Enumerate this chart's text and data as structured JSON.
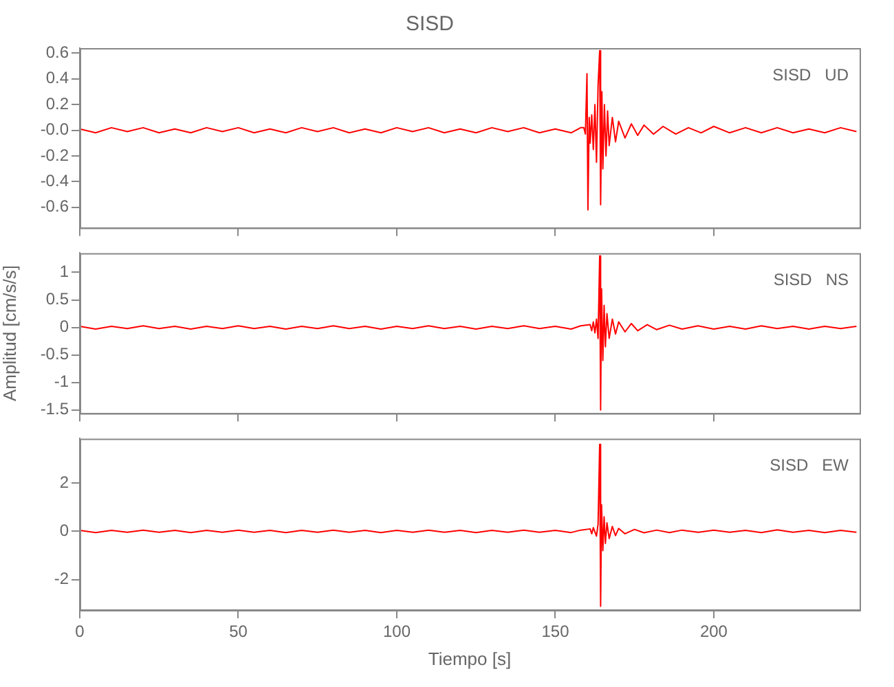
{
  "chart_data": [
    {
      "type": "line",
      "title": "SISD",
      "annotations": [
        "SISD   UD"
      ],
      "color": "#ff0000",
      "marker": "none",
      "grid": false,
      "legend": false,
      "tick_labels": "y",
      "xlim": [
        0,
        246
      ],
      "xticks": [
        0,
        50,
        100,
        150,
        200
      ],
      "ylim": [
        -0.76,
        0.64
      ],
      "yticks": [
        -0.6,
        -0.4,
        -0.2,
        {
          "value": 0,
          "label": "-0.0"
        },
        0.2,
        0.4,
        0.6
      ],
      "x": [
        0,
        5,
        10,
        15,
        20,
        25,
        30,
        35,
        40,
        45,
        50,
        55,
        60,
        65,
        70,
        75,
        80,
        85,
        90,
        95,
        100,
        105,
        110,
        115,
        120,
        125,
        130,
        135,
        140,
        145,
        150,
        155,
        158,
        159,
        159.5,
        160,
        160.3,
        160.7,
        161,
        161.5,
        162,
        162.5,
        163,
        163.5,
        164,
        164.3,
        164.7,
        165,
        165.5,
        166,
        166.5,
        167,
        168,
        169,
        170,
        172,
        174,
        176,
        178,
        181,
        184,
        188,
        192,
        196,
        200,
        205,
        210,
        215,
        220,
        225,
        230,
        235,
        240,
        245
      ],
      "values": [
        0.01,
        -0.02,
        0.02,
        -0.01,
        0.02,
        -0.02,
        0.01,
        -0.02,
        0.02,
        -0.01,
        0.02,
        -0.02,
        0.01,
        -0.02,
        0.02,
        -0.01,
        0.02,
        -0.02,
        0.01,
        -0.02,
        0.02,
        -0.01,
        0.02,
        -0.02,
        0.01,
        -0.02,
        0.02,
        -0.01,
        0.02,
        -0.02,
        0.01,
        -0.02,
        0.02,
        0.02,
        -0.03,
        0.44,
        -0.62,
        0.1,
        -0.1,
        0.12,
        -0.15,
        0.2,
        -0.25,
        0.35,
        0.62,
        -0.58,
        0.3,
        -0.3,
        0.2,
        -0.2,
        0.15,
        -0.12,
        0.1,
        -0.09,
        0.07,
        -0.06,
        0.05,
        -0.04,
        0.04,
        -0.03,
        0.03,
        -0.03,
        0.02,
        -0.02,
        0.03,
        -0.02,
        0.02,
        -0.02,
        0.02,
        -0.02,
        0.01,
        -0.02,
        0.02,
        -0.01
      ]
    },
    {
      "type": "line",
      "ylabel": "Amplitud [cm/s/s]",
      "annotations": [
        "SISD   NS"
      ],
      "color": "#ff0000",
      "marker": "none",
      "grid": false,
      "legend": false,
      "tick_labels": "y",
      "xlim": [
        0,
        246
      ],
      "xticks": [
        0,
        50,
        100,
        150,
        200
      ],
      "ylim": [
        -1.56,
        1.35
      ],
      "yticks": [
        -1.5,
        -1,
        -0.5,
        0,
        0.5,
        1
      ],
      "x": [
        0,
        5,
        10,
        15,
        20,
        25,
        30,
        35,
        40,
        45,
        50,
        55,
        60,
        65,
        70,
        75,
        80,
        85,
        90,
        95,
        100,
        105,
        110,
        115,
        120,
        125,
        130,
        135,
        140,
        145,
        150,
        155,
        158,
        161,
        161.5,
        162,
        162.5,
        163,
        163.5,
        164,
        164.3,
        164.6,
        165,
        165.4,
        165.8,
        166.3,
        167,
        168,
        169,
        170,
        172,
        174,
        176,
        179,
        182,
        186,
        190,
        195,
        200,
        205,
        210,
        215,
        220,
        225,
        230,
        235,
        240,
        245
      ],
      "values": [
        0.02,
        -0.03,
        0.02,
        -0.02,
        0.03,
        -0.02,
        0.02,
        -0.03,
        0.02,
        -0.02,
        0.03,
        -0.02,
        0.02,
        -0.03,
        0.02,
        -0.02,
        0.03,
        -0.02,
        0.02,
        -0.03,
        0.02,
        -0.02,
        0.03,
        -0.02,
        0.02,
        -0.03,
        0.02,
        -0.02,
        0.03,
        -0.02,
        0.02,
        -0.03,
        0.03,
        0.05,
        -0.06,
        0.1,
        -0.1,
        0.15,
        -0.2,
        1.3,
        -1.5,
        0.7,
        -0.6,
        0.4,
        -0.35,
        0.25,
        -0.2,
        0.15,
        -0.12,
        0.1,
        -0.08,
        0.07,
        -0.06,
        0.05,
        -0.04,
        0.04,
        -0.03,
        0.03,
        -0.03,
        0.02,
        -0.03,
        0.03,
        -0.02,
        0.02,
        -0.03,
        0.02,
        -0.02,
        0.02
      ]
    },
    {
      "type": "line",
      "xlabel": "Tiempo [s]",
      "annotations": [
        "SISD   EW"
      ],
      "color": "#ff0000",
      "marker": "none",
      "grid": false,
      "legend": false,
      "xlim": [
        0,
        246
      ],
      "xticks": [
        0,
        50,
        100,
        150,
        200
      ],
      "ylim": [
        -3.26,
        3.84
      ],
      "yticks": [
        -2,
        0,
        2
      ],
      "x": [
        0,
        5,
        10,
        15,
        20,
        25,
        30,
        35,
        40,
        45,
        50,
        55,
        60,
        65,
        70,
        75,
        80,
        85,
        90,
        95,
        100,
        105,
        110,
        115,
        120,
        125,
        130,
        135,
        140,
        145,
        150,
        155,
        158,
        161,
        161.5,
        162,
        163,
        163.5,
        164,
        164.3,
        164.6,
        165,
        165.4,
        165.8,
        166.3,
        167,
        168,
        169,
        170,
        172,
        175,
        178,
        182,
        186,
        190,
        195,
        200,
        205,
        210,
        215,
        220,
        225,
        230,
        235,
        240,
        245
      ],
      "values": [
        0.04,
        -0.05,
        0.04,
        -0.04,
        0.05,
        -0.04,
        0.04,
        -0.05,
        0.04,
        -0.04,
        0.05,
        -0.04,
        0.04,
        -0.05,
        0.04,
        -0.04,
        0.05,
        -0.04,
        0.04,
        -0.05,
        0.04,
        -0.04,
        0.05,
        -0.04,
        0.04,
        -0.05,
        0.04,
        -0.04,
        0.05,
        -0.04,
        0.04,
        -0.05,
        0.05,
        0.1,
        -0.1,
        0.15,
        -0.2,
        0.3,
        3.6,
        -3.1,
        1.1,
        -0.8,
        0.6,
        -0.5,
        0.35,
        -0.3,
        0.2,
        -0.18,
        0.12,
        -0.1,
        0.08,
        -0.06,
        0.05,
        -0.05,
        0.05,
        -0.04,
        0.05,
        -0.04,
        0.04,
        -0.05,
        0.06,
        -0.04,
        0.04,
        -0.05,
        0.04,
        -0.04
      ]
    }
  ]
}
